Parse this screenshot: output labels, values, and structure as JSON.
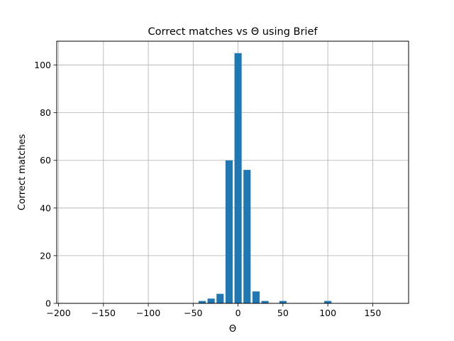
{
  "chart_data": {
    "type": "bar",
    "title": "Correct matches vs Θ  using Brief",
    "xlabel": "Θ",
    "ylabel": "Correct matches",
    "xlim": [
      -202,
      190
    ],
    "ylim": [
      0,
      110
    ],
    "xticks": [
      -200,
      -150,
      -100,
      -50,
      0,
      50,
      100,
      150
    ],
    "xtick_labels": [
      "−200",
      "−150",
      "−100",
      "−50",
      "0",
      "50",
      "100",
      "150"
    ],
    "yticks": [
      0,
      20,
      40,
      60,
      80,
      100
    ],
    "ytick_labels": [
      "0",
      "20",
      "40",
      "60",
      "80",
      "100"
    ],
    "grid": true,
    "bar_width": 8,
    "color": "#1f77b4",
    "x": [
      -40,
      -30,
      -20,
      -10,
      0,
      10,
      20,
      30,
      50,
      100
    ],
    "values": [
      1,
      2,
      4,
      60,
      105,
      56,
      5,
      1,
      1,
      1
    ]
  }
}
